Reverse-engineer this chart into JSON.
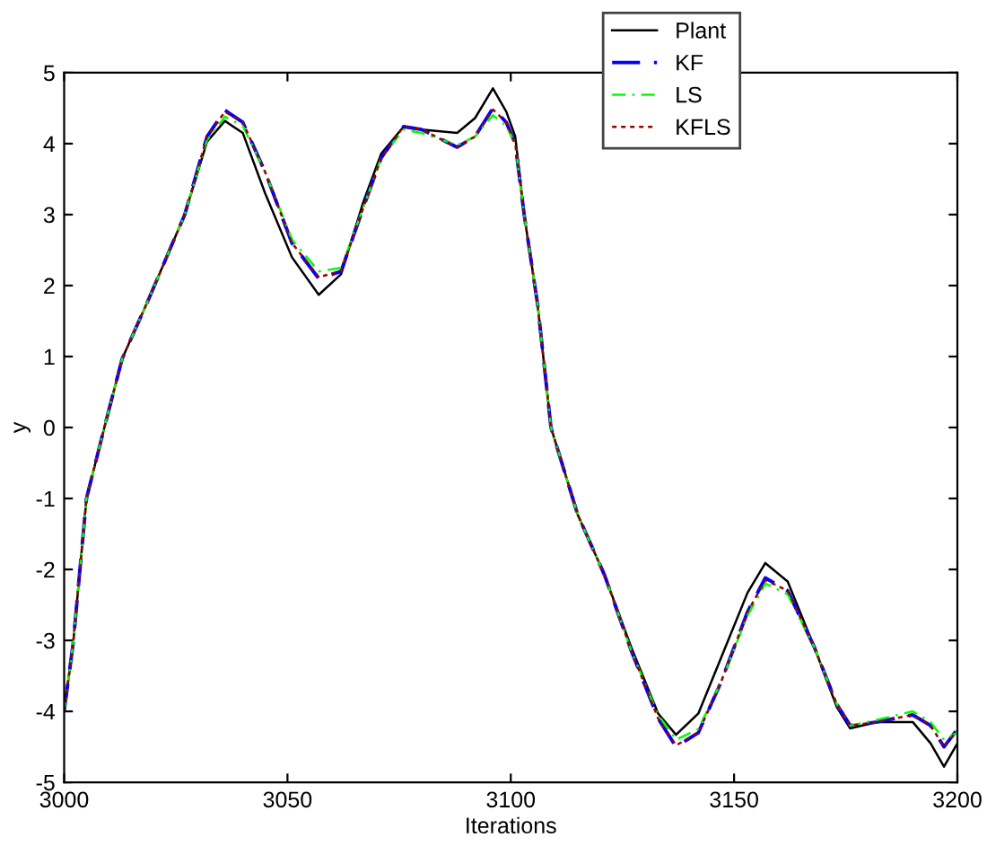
{
  "chart_data": {
    "type": "line",
    "xlabel": "Iterations",
    "ylabel": "y",
    "x": [
      3000,
      3002,
      3005,
      3009,
      3013,
      3019,
      3027,
      3032,
      3036,
      3040,
      3045,
      3051,
      3057,
      3062,
      3067,
      3071,
      3076,
      3080,
      3088,
      3092,
      3096,
      3099,
      3101,
      3103,
      3106,
      3109,
      3115,
      3121,
      3127,
      3133,
      3137,
      3142,
      3147,
      3153,
      3157,
      3162,
      3168,
      3173,
      3176,
      3182,
      3190,
      3194,
      3197,
      3200
    ],
    "series": [
      {
        "name": "Plant",
        "color": "#000000",
        "line_style": "solid",
        "values": [
          -4.0,
          -3.05,
          -1.0,
          0.0,
          0.97,
          1.82,
          3.0,
          4.03,
          4.32,
          4.15,
          3.3,
          2.4,
          1.87,
          2.16,
          3.18,
          3.86,
          4.24,
          4.2,
          4.15,
          4.36,
          4.78,
          4.45,
          4.1,
          3.0,
          1.74,
          0.0,
          -1.23,
          -2.08,
          -3.1,
          -4.03,
          -4.33,
          -4.03,
          -3.26,
          -2.33,
          -1.91,
          -2.17,
          -3.1,
          -3.94,
          -4.24,
          -4.15,
          -4.15,
          -4.45,
          -4.78,
          -4.45
        ]
      },
      {
        "name": "KF",
        "color": "#0000ff",
        "line_style": "dashed",
        "values": [
          -4.0,
          -3.05,
          -1.0,
          0.0,
          0.97,
          1.82,
          3.0,
          4.1,
          4.47,
          4.3,
          3.6,
          2.6,
          2.1,
          2.2,
          3.1,
          3.8,
          4.24,
          4.2,
          3.95,
          4.1,
          4.5,
          4.3,
          4.0,
          3.0,
          1.74,
          0.0,
          -1.23,
          -2.08,
          -3.15,
          -4.1,
          -4.5,
          -4.3,
          -3.6,
          -2.6,
          -2.12,
          -2.3,
          -3.1,
          -3.9,
          -4.2,
          -4.15,
          -4.05,
          -4.2,
          -4.5,
          -4.25
        ]
      },
      {
        "name": "LS",
        "color": "#00ff00",
        "line_style": "dashdot",
        "values": [
          -4.0,
          -3.05,
          -1.0,
          0.0,
          0.97,
          1.82,
          3.0,
          4.05,
          4.38,
          4.25,
          3.6,
          2.65,
          2.2,
          2.25,
          3.1,
          3.8,
          4.2,
          4.15,
          3.98,
          4.1,
          4.4,
          4.25,
          4.0,
          3.0,
          1.74,
          0.0,
          -1.23,
          -2.08,
          -3.15,
          -4.05,
          -4.4,
          -4.25,
          -3.6,
          -2.65,
          -2.2,
          -2.35,
          -3.1,
          -3.9,
          -4.2,
          -4.12,
          -4.0,
          -4.15,
          -4.4,
          -4.3
        ]
      },
      {
        "name": "KFLS",
        "color": "#990000",
        "line_style": "dotted",
        "values": [
          -4.0,
          -3.05,
          -1.0,
          0.0,
          0.97,
          1.82,
          3.0,
          4.1,
          4.45,
          4.3,
          3.6,
          2.6,
          2.12,
          2.2,
          3.1,
          3.8,
          4.24,
          4.2,
          3.95,
          4.1,
          4.48,
          4.3,
          4.0,
          3.0,
          1.74,
          0.0,
          -1.23,
          -2.08,
          -3.15,
          -4.1,
          -4.48,
          -4.3,
          -3.6,
          -2.6,
          -2.15,
          -2.3,
          -3.1,
          -3.9,
          -4.2,
          -4.15,
          -4.05,
          -4.2,
          -4.5,
          -4.27
        ]
      }
    ],
    "xlim": [
      3000,
      3200
    ],
    "xticks": [
      3000,
      3050,
      3100,
      3150,
      3200
    ],
    "ylim": [
      -5,
      5
    ],
    "yticks": [
      -5,
      -4,
      -3,
      -2,
      -1,
      0,
      1,
      2,
      3,
      4,
      5
    ],
    "grid": false,
    "legend": "top right"
  }
}
